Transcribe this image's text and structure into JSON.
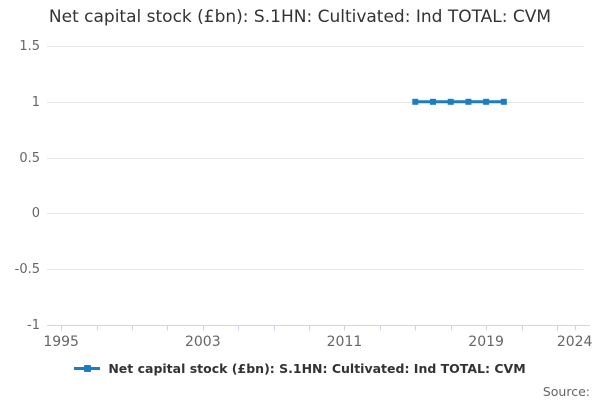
{
  "title": "Net capital stock (£bn): S.1HN: Cultivated: Ind TOTAL: CVM",
  "legend": {
    "label": "Net capital stock (£bn): S.1HN: Cultivated: Ind TOTAL: CVM"
  },
  "source": {
    "label": "Source:"
  },
  "colors": {
    "series": "#1d7dc2",
    "gridline": "#e6e6e6",
    "axis_line": "#ccd6eb",
    "tick_label": "#666666",
    "title_text": "#333333",
    "legend_text": "#333333"
  },
  "chart_data": {
    "type": "line",
    "title": "Net capital stock (£bn): S.1HN: Cultivated: Ind TOTAL: CVM",
    "xlabel": "",
    "ylabel": "",
    "xlim": [
      1994.2,
      2024.5
    ],
    "ylim": [
      -1,
      1.5
    ],
    "grid": "horizontal-only",
    "legend_position": "bottom",
    "x": [
      2015,
      2016,
      2017,
      2018,
      2019,
      2020
    ],
    "series": [
      {
        "name": "Net capital stock (£bn): S.1HN: Cultivated: Ind TOTAL: CVM",
        "values": [
          1,
          1,
          1,
          1,
          1,
          1
        ]
      }
    ],
    "y_ticks": [
      {
        "value": 1.5,
        "label": "1.5"
      },
      {
        "value": 1,
        "label": "1"
      },
      {
        "value": 0.5,
        "label": "0.5"
      },
      {
        "value": 0,
        "label": "0"
      },
      {
        "value": -0.5,
        "label": "-0.5"
      },
      {
        "value": -1,
        "label": "-1"
      }
    ],
    "x_ticks": [
      {
        "value": 1995,
        "label": "1995"
      },
      {
        "value": 1997,
        "label": ""
      },
      {
        "value": 1999,
        "label": ""
      },
      {
        "value": 2001,
        "label": ""
      },
      {
        "value": 2003,
        "label": "2003"
      },
      {
        "value": 2005,
        "label": ""
      },
      {
        "value": 2007,
        "label": ""
      },
      {
        "value": 2009,
        "label": ""
      },
      {
        "value": 2011,
        "label": "2011"
      },
      {
        "value": 2013,
        "label": ""
      },
      {
        "value": 2015,
        "label": ""
      },
      {
        "value": 2017,
        "label": ""
      },
      {
        "value": 2019,
        "label": "2019"
      },
      {
        "value": 2021,
        "label": ""
      },
      {
        "value": 2023,
        "label": ""
      },
      {
        "value": 2024,
        "label": "2024"
      }
    ]
  }
}
